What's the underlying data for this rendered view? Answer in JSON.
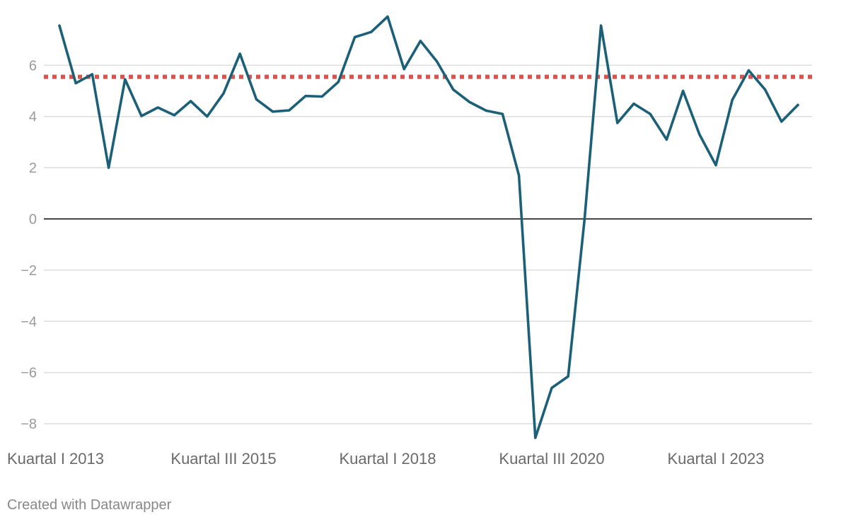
{
  "chart_data": {
    "type": "line",
    "title": "",
    "xlabel": "",
    "ylabel": "",
    "ylim": [
      -8.6,
      7.9
    ],
    "y_ticks": [
      6,
      4,
      2,
      0,
      -2,
      -4,
      -6,
      -8
    ],
    "y_tick_labels": [
      "6",
      "4",
      "2",
      "0",
      "−2",
      "−4",
      "−6",
      "−8"
    ],
    "x_tick_labels": [
      {
        "label": "Kuartal I 2013",
        "index": 0
      },
      {
        "label": "Kuartal III 2015",
        "index": 10
      },
      {
        "label": "Kuartal I 2018",
        "index": 20
      },
      {
        "label": "Kuartal III 2020",
        "index": 30
      },
      {
        "label": "Kuartal I 2023",
        "index": 40
      }
    ],
    "grid": true,
    "series": [
      {
        "color": "#1b5f78",
        "values": [
          7.55,
          5.3,
          5.65,
          2.0,
          5.45,
          4.02,
          4.35,
          4.05,
          4.6,
          4.0,
          4.9,
          6.45,
          4.67,
          4.19,
          4.24,
          4.8,
          4.78,
          5.35,
          7.1,
          7.3,
          7.9,
          5.85,
          6.95,
          6.15,
          5.05,
          4.56,
          4.23,
          4.1,
          1.7,
          -8.55,
          -6.6,
          -6.15,
          0.0,
          7.55,
          3.75,
          4.5,
          4.1,
          3.1,
          5.0,
          3.3,
          2.1,
          4.65,
          5.8,
          5.05,
          3.8,
          4.45
        ]
      }
    ],
    "reference_line": {
      "value": 5.55,
      "color": "#d9534f",
      "style": "dotted"
    },
    "zero_line_color": "#000000",
    "grid_color": "#dddddd"
  },
  "credit": "Created with Datawrapper"
}
